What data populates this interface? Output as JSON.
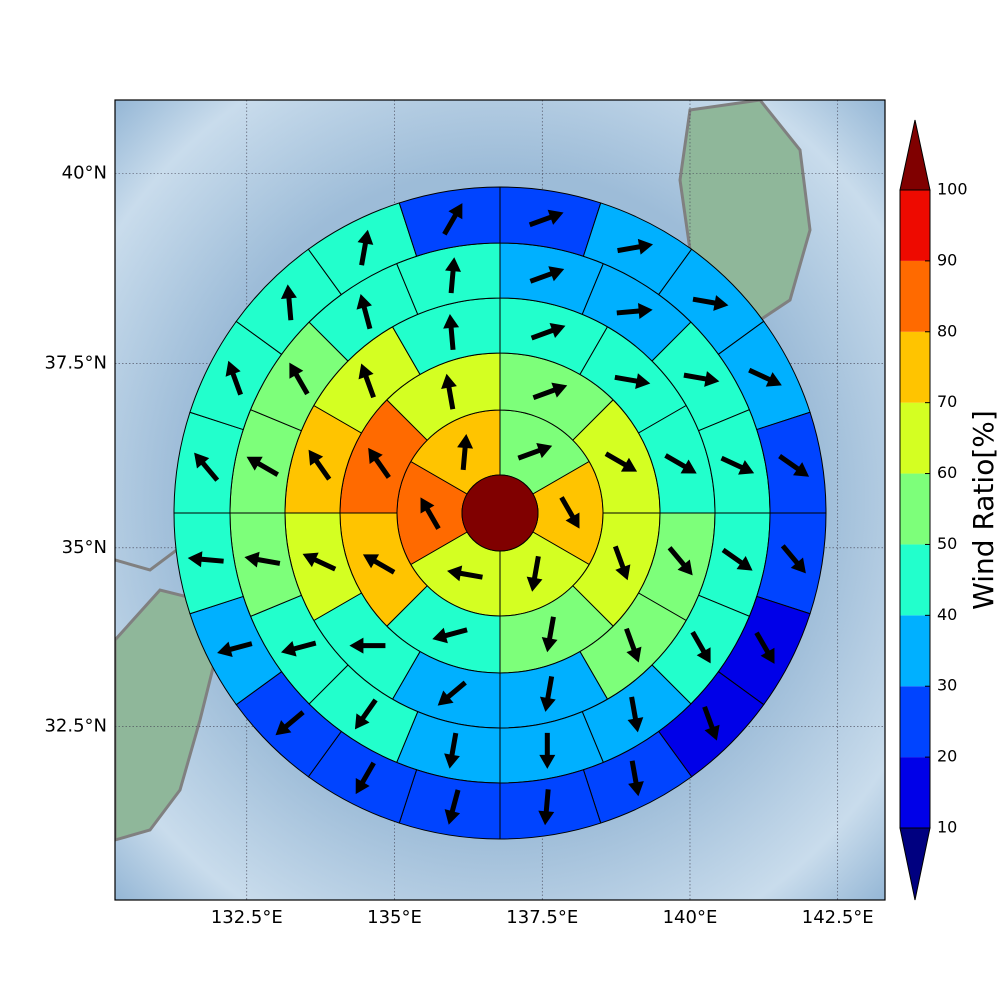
{
  "chart_data": {
    "type": "polar_sector_map",
    "projection": "mercator",
    "xlim": [
      130.27,
      143.3
    ],
    "ylim": [
      30.0,
      40.94
    ],
    "xticks": [
      {
        "value": 132.5,
        "label": "132.5°E"
      },
      {
        "value": 135,
        "label": "135°E"
      },
      {
        "value": 137.5,
        "label": "137.5°E"
      },
      {
        "value": 140,
        "label": "140°E"
      },
      {
        "value": 142.5,
        "label": "142.5°E"
      }
    ],
    "yticks": [
      {
        "value": 32.5,
        "label": "32.5°N"
      },
      {
        "value": 35,
        "label": "35°N"
      },
      {
        "value": 37.5,
        "label": "37.5°N"
      },
      {
        "value": 40,
        "label": "40°N"
      }
    ],
    "grid": true,
    "rings": [
      {
        "values": [
          55,
          75,
          65,
          65,
          85,
          75
        ],
        "directions": [
          70,
          150,
          190,
          280,
          330,
          5
        ]
      },
      {
        "values": [
          55,
          65,
          65,
          55,
          45,
          75,
          85,
          65
        ],
        "directions": [
          70,
          120,
          160,
          190,
          255,
          300,
          325,
          350
        ]
      },
      {
        "values": [
          45,
          45,
          45,
          55,
          55,
          35,
          35,
          45,
          65,
          75,
          65,
          45
        ],
        "directions": [
          70,
          100,
          120,
          140,
          160,
          190,
          230,
          270,
          295,
          325,
          340,
          355
        ]
      },
      {
        "values": [
          35,
          35,
          45,
          45,
          45,
          45,
          35,
          35,
          35,
          45,
          45,
          55,
          55,
          55,
          45,
          45
        ],
        "directions": [
          70,
          85,
          100,
          115,
          125,
          150,
          170,
          180,
          190,
          215,
          255,
          280,
          300,
          330,
          345,
          5
        ]
      },
      {
        "values": [
          25,
          35,
          35,
          35,
          25,
          25,
          15,
          15,
          25,
          25,
          25,
          25,
          25,
          35,
          45,
          45,
          45,
          45,
          45,
          25
        ],
        "directions": [
          70,
          80,
          100,
          115,
          125,
          140,
          150,
          160,
          170,
          185,
          195,
          210,
          230,
          255,
          275,
          320,
          340,
          355,
          10,
          30
        ]
      }
    ],
    "colorbar": {
      "label": "Wind Ratio[%]",
      "ticks": [
        10,
        20,
        30,
        40,
        50,
        60,
        70,
        80,
        90,
        100
      ],
      "colors": [
        "#0000e8",
        "#0044ff",
        "#00b0ff",
        "#22ffcc",
        "#7dff7a",
        "#d4ff22",
        "#ffc400",
        "#ff6a00",
        "#ee0a00"
      ],
      "under_color": "#000080",
      "over_color": "#800000"
    }
  }
}
